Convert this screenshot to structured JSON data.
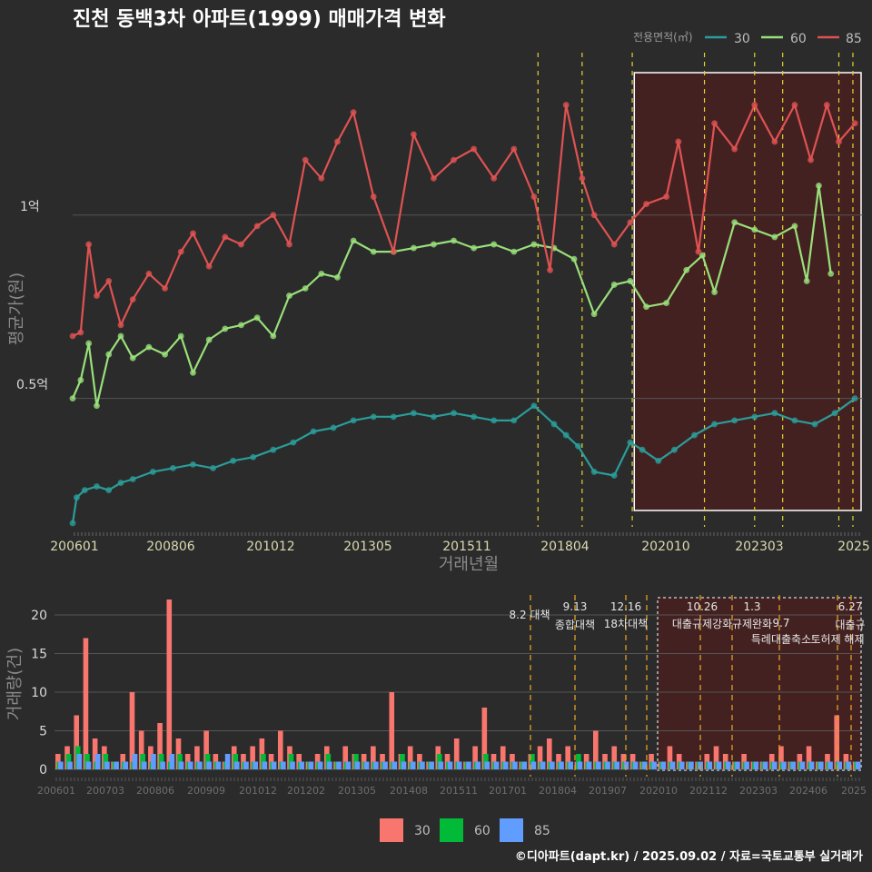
{
  "title": "진천 동백3차 아파트(1999) 매매가격 변화",
  "footer": "©디아파트(dapt.kr) / 2025.09.02 / 자료=국토교통부 실거래가",
  "colors": {
    "s30": "#2a9d9a",
    "s60": "#99e07a",
    "s85": "#e05252",
    "bar30": "#f8766d",
    "bar60": "#00ba38",
    "bar85": "#619cff",
    "policy": "#e6d22e",
    "policy_bottom": "#e0a020"
  },
  "chart_data": [
    {
      "type": "line",
      "title": "진천 동백3차 아파트(1999) 매매가격 변화",
      "xlabel": "거래년월",
      "ylabel": "평균가(원)",
      "x_tick_labels": [
        "200601",
        "200806",
        "201012",
        "201305",
        "201511",
        "201804",
        "202010",
        "202303",
        "2025"
      ],
      "x_range": [
        2006.0,
        2025.7
      ],
      "y_ticks": [
        {
          "value": 0.5,
          "label": "0.5억"
        },
        {
          "value": 1.0,
          "label": "1억"
        }
      ],
      "ylim": [
        0.15,
        1.45
      ],
      "legend_title": "전용면적(㎡)",
      "legend": [
        "30",
        "60",
        "85"
      ],
      "policy_lines": [
        2017.6,
        2018.7,
        2019.95,
        2021.75,
        2023.0,
        2023.7,
        2025.1,
        2025.45
      ],
      "highlight_range": [
        2020.0,
        2025.6
      ],
      "series": [
        {
          "name": "30",
          "x": [
            2006.0,
            2006.1,
            2006.3,
            2006.6,
            2006.9,
            2007.2,
            2007.5,
            2008.0,
            2008.5,
            2009.0,
            2009.5,
            2010.0,
            2010.5,
            2011.0,
            2011.5,
            2012.0,
            2012.5,
            2013.0,
            2013.5,
            2014.0,
            2014.5,
            2015.0,
            2015.5,
            2016.0,
            2016.5,
            2017.0,
            2017.5,
            2018.0,
            2018.3,
            2018.6,
            2019.0,
            2019.5,
            2019.9,
            2020.2,
            2020.6,
            2021.0,
            2021.5,
            2022.0,
            2022.5,
            2023.0,
            2023.5,
            2024.0,
            2024.5,
            2025.0,
            2025.5
          ],
          "values": [
            0.16,
            0.23,
            0.25,
            0.26,
            0.25,
            0.27,
            0.28,
            0.3,
            0.31,
            0.32,
            0.31,
            0.33,
            0.34,
            0.36,
            0.38,
            0.41,
            0.42,
            0.44,
            0.45,
            0.45,
            0.46,
            0.45,
            0.46,
            0.45,
            0.44,
            0.44,
            0.48,
            0.43,
            0.4,
            0.37,
            0.3,
            0.29,
            0.38,
            0.36,
            0.33,
            0.36,
            0.4,
            0.43,
            0.44,
            0.45,
            0.46,
            0.44,
            0.43,
            0.46,
            0.5
          ]
        },
        {
          "name": "60",
          "x": [
            2006.0,
            2006.2,
            2006.4,
            2006.6,
            2006.9,
            2007.2,
            2007.5,
            2007.9,
            2008.3,
            2008.7,
            2009.0,
            2009.4,
            2009.8,
            2010.2,
            2010.6,
            2011.0,
            2011.4,
            2011.8,
            2012.2,
            2012.6,
            2013.0,
            2013.5,
            2014.0,
            2014.5,
            2015.0,
            2015.5,
            2016.0,
            2016.5,
            2017.0,
            2017.5,
            2018.0,
            2018.5,
            2019.0,
            2019.5,
            2019.9,
            2020.3,
            2020.8,
            2021.3,
            2021.7,
            2022.0,
            2022.5,
            2023.0,
            2023.5,
            2024.0,
            2024.3,
            2024.6,
            2024.9
          ],
          "values": [
            0.5,
            0.55,
            0.65,
            0.48,
            0.62,
            0.67,
            0.61,
            0.64,
            0.62,
            0.67,
            0.57,
            0.66,
            0.69,
            0.7,
            0.72,
            0.67,
            0.78,
            0.8,
            0.84,
            0.83,
            0.93,
            0.9,
            0.9,
            0.91,
            0.92,
            0.93,
            0.91,
            0.92,
            0.9,
            0.92,
            0.91,
            0.88,
            0.73,
            0.81,
            0.82,
            0.75,
            0.76,
            0.85,
            0.89,
            0.79,
            0.98,
            0.96,
            0.94,
            0.97,
            0.82,
            1.08,
            0.84
          ]
        },
        {
          "name": "85",
          "x": [
            2006.0,
            2006.2,
            2006.4,
            2006.6,
            2006.9,
            2007.2,
            2007.5,
            2007.9,
            2008.3,
            2008.7,
            2009.0,
            2009.4,
            2009.8,
            2010.2,
            2010.6,
            2011.0,
            2011.4,
            2011.8,
            2012.2,
            2012.6,
            2013.0,
            2013.5,
            2014.0,
            2014.5,
            2015.0,
            2015.5,
            2016.0,
            2016.5,
            2017.0,
            2017.5,
            2017.9,
            2018.3,
            2018.7,
            2019.0,
            2019.5,
            2019.9,
            2020.3,
            2020.8,
            2021.1,
            2021.6,
            2022.0,
            2022.5,
            2023.0,
            2023.5,
            2024.0,
            2024.4,
            2024.8,
            2025.1,
            2025.5
          ],
          "values": [
            0.67,
            0.68,
            0.92,
            0.78,
            0.82,
            0.7,
            0.77,
            0.84,
            0.8,
            0.9,
            0.95,
            0.86,
            0.94,
            0.92,
            0.97,
            1.0,
            0.92,
            1.15,
            1.1,
            1.2,
            1.28,
            1.05,
            0.9,
            1.22,
            1.1,
            1.15,
            1.18,
            1.1,
            1.18,
            1.05,
            0.85,
            1.3,
            1.1,
            1.0,
            0.92,
            0.98,
            1.03,
            1.05,
            1.2,
            0.9,
            1.25,
            1.18,
            1.3,
            1.2,
            1.3,
            1.15,
            1.3,
            1.2,
            1.25
          ]
        }
      ]
    },
    {
      "type": "bar",
      "ylabel": "거래량(건)",
      "y_ticks": [
        0,
        5,
        10,
        15,
        20
      ],
      "ylim": [
        0,
        22
      ],
      "x_tick_labels": [
        "200601",
        "200703",
        "200806",
        "200909",
        "201012",
        "201202",
        "201305",
        "201408",
        "201511",
        "201701",
        "201804",
        "201907",
        "202010",
        "202112",
        "202303",
        "202406",
        "2025"
      ],
      "legend": [
        "30",
        "60",
        "85"
      ],
      "policy_annotations": [
        {
          "x": 2017.6,
          "date": "8.2",
          "label": "대책"
        },
        {
          "x": 2018.7,
          "date": "9.13",
          "label": "종합대책"
        },
        {
          "x": 2019.95,
          "date": "12.16",
          "label": "18차대책"
        },
        {
          "x": 2021.75,
          "date": "10.26",
          "label": "대출규제강화"
        },
        {
          "x": 2023.0,
          "date": "1.3",
          "label": "규제완화"
        },
        {
          "x": 2023.7,
          "date": "9.7",
          "label": "특례대출축소"
        },
        {
          "x": 2025.1,
          "date": "6.27",
          "label": "대출규"
        },
        {
          "x": 2025.45,
          "date": "",
          "label": "토허제 해제"
        }
      ],
      "series": [
        {
          "name": "30",
          "values": [
            2,
            3,
            7,
            17,
            4,
            3,
            1,
            2,
            10,
            5,
            3,
            6,
            22,
            4,
            2,
            3,
            5,
            2,
            1,
            3,
            2,
            3,
            4,
            2,
            5,
            3,
            2,
            1,
            2,
            3,
            1,
            3,
            2,
            2,
            3,
            2,
            10,
            2,
            3,
            2,
            1,
            3,
            2,
            4,
            1,
            3,
            8,
            2,
            3,
            2,
            1,
            2,
            3,
            4,
            2,
            3,
            1,
            2,
            5,
            2,
            3,
            2,
            2,
            1,
            2,
            1,
            3,
            2,
            1,
            1,
            2,
            3,
            2,
            1,
            2,
            1,
            1,
            2,
            3,
            1,
            2,
            3,
            1,
            2,
            7,
            2,
            1
          ]
        },
        {
          "name": "60",
          "values": [
            1,
            2,
            3,
            2,
            1,
            2,
            1,
            1,
            1,
            2,
            1,
            2,
            1,
            2,
            1,
            1,
            2,
            1,
            1,
            2,
            1,
            1,
            2,
            1,
            1,
            2,
            1,
            1,
            1,
            2,
            1,
            1,
            2,
            1,
            1,
            1,
            1,
            2,
            1,
            1,
            1,
            2,
            1,
            1,
            1,
            1,
            2,
            1,
            1,
            1,
            1,
            2,
            1,
            1,
            1,
            1,
            2,
            1,
            1,
            1,
            1,
            1,
            1,
            1,
            1,
            1,
            1,
            1,
            1,
            1,
            1,
            1,
            1,
            1,
            1,
            1,
            1,
            1,
            1,
            1,
            1,
            1,
            1,
            1,
            1,
            1,
            1
          ]
        },
        {
          "name": "85",
          "values": [
            1,
            1,
            2,
            1,
            2,
            1,
            1,
            1,
            2,
            1,
            2,
            1,
            2,
            1,
            1,
            1,
            1,
            1,
            2,
            1,
            1,
            1,
            1,
            1,
            1,
            1,
            1,
            1,
            1,
            1,
            1,
            1,
            1,
            1,
            1,
            1,
            1,
            1,
            1,
            1,
            1,
            1,
            1,
            1,
            1,
            1,
            1,
            1,
            1,
            1,
            1,
            1,
            1,
            1,
            1,
            1,
            1,
            1,
            1,
            1,
            1,
            1,
            1,
            1,
            1,
            1,
            1,
            1,
            1,
            1,
            1,
            1,
            1,
            1,
            1,
            1,
            1,
            1,
            1,
            1,
            1,
            1,
            1,
            1,
            1,
            1,
            1
          ]
        }
      ]
    }
  ]
}
